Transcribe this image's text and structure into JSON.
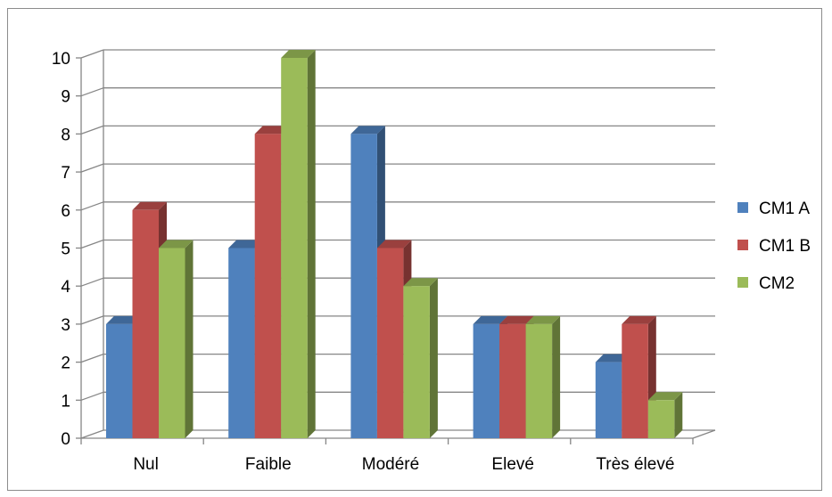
{
  "chart_data": {
    "type": "bar",
    "style": "3d-clustered-column",
    "categories": [
      "Nul",
      "Faible",
      "Modéré",
      "Elevé",
      "Très élevé"
    ],
    "series": [
      {
        "name": "CM1 A",
        "values": [
          3,
          5,
          8,
          3,
          2
        ],
        "color": "#4F81BD"
      },
      {
        "name": "CM1 B",
        "values": [
          6,
          8,
          5,
          3,
          3
        ],
        "color": "#C0504D"
      },
      {
        "name": "CM2",
        "values": [
          5,
          10,
          4,
          3,
          1
        ],
        "color": "#9BBB59"
      }
    ],
    "ylim": [
      0,
      10
    ],
    "yticks": [
      0,
      1,
      2,
      3,
      4,
      5,
      6,
      7,
      8,
      9,
      10
    ],
    "title": "",
    "xlabel": "",
    "ylabel": "",
    "grid": true,
    "legend_position": "right"
  }
}
